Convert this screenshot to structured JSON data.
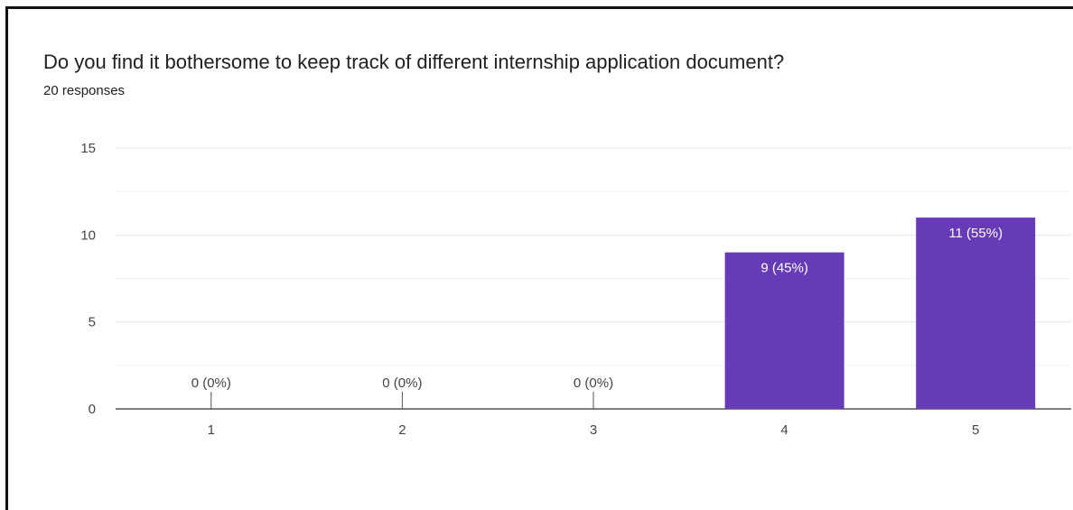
{
  "chart_data": {
    "type": "bar",
    "title": "Do you find it bothersome to keep track of different internship application document?",
    "subtitle": "20 responses",
    "categories": [
      "1",
      "2",
      "3",
      "4",
      "5"
    ],
    "values": [
      0,
      0,
      0,
      9,
      11
    ],
    "data_labels": [
      "0 (0%)",
      "0 (0%)",
      "0 (0%)",
      "9 (45%)",
      "11 (55%)"
    ],
    "ylim": [
      0,
      15
    ],
    "yticks": [
      0,
      5,
      10,
      15
    ],
    "yticks_labels": [
      "0",
      "5",
      "10",
      "15"
    ],
    "minor_gridlines": [
      2.5,
      7.5,
      12.5
    ],
    "grid": true,
    "bar_color": "#673ab7",
    "label_inside_color": "#ffffff",
    "label_outside_color": "#444444"
  }
}
